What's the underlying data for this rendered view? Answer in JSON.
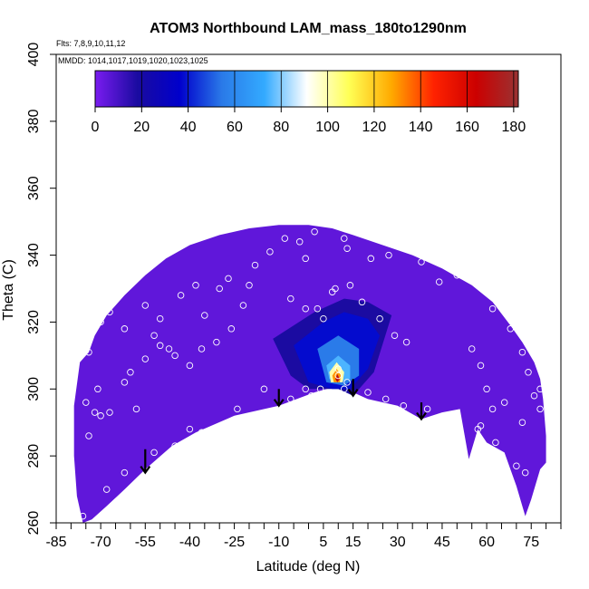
{
  "chart_data": {
    "type": "heatmap",
    "title": "ATOM3 Northbound LAM_mass_180to1290nm",
    "flights_label": "Flts: 7,8,9,10,11,12",
    "dates_label": "MMDD: 1014,1017,1019,1020,1023,1025",
    "xlabel": "Latitude (deg N)",
    "ylabel": "Theta (C)",
    "xlim": [
      -85,
      85
    ],
    "ylim": [
      260,
      400
    ],
    "x_tick_labels": [
      "-85",
      "-70",
      "-55",
      "-40",
      "-25",
      "-10",
      "5",
      "15",
      "30",
      "45",
      "60",
      "75"
    ],
    "x_minor_ticks": [
      -85,
      -80,
      -75,
      -70,
      -65,
      -60,
      -55,
      -50,
      -45,
      -40,
      -35,
      -30,
      -25,
      -20,
      -15,
      -10,
      -5,
      0,
      5,
      10,
      15,
      20,
      25,
      30,
      35,
      40,
      45,
      50,
      55,
      60,
      65,
      70,
      75,
      80,
      85
    ],
    "y_ticks": [
      260,
      280,
      300,
      320,
      340,
      360,
      380,
      400
    ],
    "colorbar": {
      "ticks": [
        0,
        20,
        40,
        60,
        80,
        100,
        120,
        140,
        160,
        180
      ],
      "range": [
        0,
        182
      ],
      "colors": [
        "#7a1cf0",
        "#1a0ba0",
        "#0000cc",
        "#2a7ae8",
        "#33aaff",
        "#ffffff",
        "#ffff55",
        "#ffaa00",
        "#ff2200",
        "#cc0000",
        "#993333"
      ]
    },
    "boundary": {
      "upper": [
        [
          -74,
          311
        ],
        [
          -72,
          316
        ],
        [
          -68,
          322
        ],
        [
          -62,
          328
        ],
        [
          -55,
          334
        ],
        [
          -48,
          339
        ],
        [
          -40,
          343
        ],
        [
          -30,
          346
        ],
        [
          -20,
          348
        ],
        [
          -10,
          349
        ],
        [
          0,
          349
        ],
        [
          8,
          348
        ],
        [
          15,
          346
        ],
        [
          25,
          343
        ],
        [
          35,
          340
        ],
        [
          45,
          336
        ],
        [
          55,
          331
        ],
        [
          62,
          326
        ],
        [
          68,
          319
        ],
        [
          72,
          314
        ],
        [
          76,
          308
        ],
        [
          78,
          303
        ]
      ],
      "right": [
        [
          78,
          303
        ],
        [
          79,
          297
        ],
        [
          80,
          286
        ],
        [
          80,
          278
        ]
      ],
      "lower": [
        [
          80,
          278
        ],
        [
          78,
          276
        ],
        [
          75,
          267
        ],
        [
          73,
          262
        ],
        [
          70,
          271
        ],
        [
          66,
          281
        ],
        [
          60,
          284
        ],
        [
          57,
          288
        ],
        [
          54,
          279
        ],
        [
          51,
          294
        ],
        [
          45,
          293
        ],
        [
          38,
          291
        ],
        [
          30,
          295
        ],
        [
          20,
          297
        ],
        [
          15,
          299
        ],
        [
          10,
          301
        ],
        [
          2,
          299
        ],
        [
          -10,
          295
        ],
        [
          -25,
          292
        ],
        [
          -38,
          287
        ],
        [
          -46,
          283
        ],
        [
          -55,
          276
        ],
        [
          -62,
          270
        ],
        [
          -68,
          265
        ],
        [
          -73,
          261
        ],
        [
          -76,
          260
        ],
        [
          -78,
          268
        ],
        [
          -79,
          280
        ],
        [
          -79,
          295
        ],
        [
          -77,
          308
        ]
      ]
    },
    "features": {
      "background_value": 5,
      "regions": [
        {
          "value": 18,
          "polygon": [
            [
              -12,
              315
            ],
            [
              2,
              323
            ],
            [
              12,
              327
            ],
            [
              20,
              326
            ],
            [
              28,
              322
            ],
            [
              22,
              305
            ],
            [
              15,
              298
            ],
            [
              10,
              300
            ],
            [
              0,
              300
            ],
            [
              -6,
              304
            ]
          ]
        },
        {
          "value": 38,
          "polygon": [
            [
              -5,
              313
            ],
            [
              5,
              320
            ],
            [
              12,
              323
            ],
            [
              20,
              321
            ],
            [
              24,
              316
            ],
            [
              20,
              306
            ],
            [
              14,
              300
            ],
            [
              8,
              300
            ],
            [
              0,
              302
            ]
          ]
        },
        {
          "value": 55,
          "polygon": [
            [
              3,
              312
            ],
            [
              10,
              316
            ],
            [
              17,
              312
            ],
            [
              17,
              304
            ],
            [
              12,
              301
            ],
            [
              6,
              302
            ]
          ]
        },
        {
          "value": 75,
          "polygon": [
            [
              6,
              307
            ],
            [
              10,
              310
            ],
            [
              14,
              307
            ],
            [
              14,
              303
            ],
            [
              10,
              302
            ],
            [
              7,
              303
            ]
          ]
        },
        {
          "value": 100,
          "polygon": [
            [
              7,
              305
            ],
            [
              9.5,
              308
            ],
            [
              12,
              305
            ],
            [
              11.5,
              302
            ],
            [
              7.5,
              302
            ]
          ]
        },
        {
          "value": 130,
          "polygon": [
            [
              8,
              304
            ],
            [
              9.5,
              306
            ],
            [
              11,
              304
            ],
            [
              10.5,
              302
            ],
            [
              8.5,
              302
            ]
          ]
        },
        {
          "value": 170,
          "polygon": [
            [
              9,
              303
            ],
            [
              9.7,
              304.5
            ],
            [
              10.5,
              303
            ],
            [
              9.7,
              302
            ]
          ]
        }
      ]
    },
    "observations": [
      [
        -74,
        311
      ],
      [
        -70,
        320
      ],
      [
        -67,
        323
      ],
      [
        -62,
        318
      ],
      [
        -55,
        325
      ],
      [
        -50,
        321
      ],
      [
        -52,
        316
      ],
      [
        -47,
        312
      ],
      [
        -43,
        328
      ],
      [
        -38,
        331
      ],
      [
        -35,
        322
      ],
      [
        -30,
        330
      ],
      [
        -27,
        333
      ],
      [
        -22,
        325
      ],
      [
        -20,
        331
      ],
      [
        -18,
        337
      ],
      [
        -13,
        341
      ],
      [
        -8,
        345
      ],
      [
        -3,
        344
      ],
      [
        -1,
        339
      ],
      [
        2,
        347
      ],
      [
        12,
        345
      ],
      [
        13,
        342
      ],
      [
        21,
        339
      ],
      [
        27,
        340
      ],
      [
        38,
        338
      ],
      [
        44,
        332
      ],
      [
        50,
        334
      ],
      [
        55,
        333
      ],
      [
        62,
        324
      ],
      [
        68,
        318
      ],
      [
        72,
        311
      ],
      [
        -60,
        305
      ],
      [
        -55,
        309
      ],
      [
        -50,
        313
      ],
      [
        -45,
        310
      ],
      [
        -40,
        307
      ],
      [
        -36,
        312
      ],
      [
        -31,
        314
      ],
      [
        -26,
        318
      ],
      [
        -71,
        300
      ],
      [
        -75,
        296
      ],
      [
        -62,
        302
      ],
      [
        -67,
        293
      ],
      [
        -70,
        292
      ],
      [
        -72,
        293
      ],
      [
        -58,
        294
      ],
      [
        -74,
        286
      ],
      [
        -40,
        288
      ],
      [
        -36,
        287
      ],
      [
        -24,
        294
      ],
      [
        -15,
        300
      ],
      [
        -6,
        297
      ],
      [
        -1,
        300
      ],
      [
        1,
        298
      ],
      [
        4,
        300
      ],
      [
        8,
        329
      ],
      [
        9,
        330
      ],
      [
        3,
        324
      ],
      [
        5,
        321
      ],
      [
        -1,
        324
      ],
      [
        -6,
        327
      ],
      [
        14,
        331
      ],
      [
        18,
        326
      ],
      [
        24,
        321
      ],
      [
        29,
        316
      ],
      [
        33,
        314
      ],
      [
        10,
        306
      ],
      [
        10,
        304
      ],
      [
        13,
        302
      ],
      [
        12,
        300
      ],
      [
        20,
        299
      ],
      [
        26,
        297
      ],
      [
        32,
        295
      ],
      [
        40,
        294
      ],
      [
        57,
        288
      ],
      [
        63,
        284
      ],
      [
        66,
        296
      ],
      [
        72,
        290
      ],
      [
        76,
        298
      ],
      [
        78,
        294
      ],
      [
        58,
        307
      ],
      [
        55,
        312
      ],
      [
        60,
        300
      ],
      [
        62,
        294
      ],
      [
        74,
        305
      ],
      [
        78,
        300
      ],
      [
        58,
        289
      ],
      [
        70,
        277
      ],
      [
        73,
        275
      ],
      [
        -76,
        262
      ],
      [
        -68,
        270
      ],
      [
        -62,
        275
      ],
      [
        -45,
        283
      ],
      [
        -52,
        281
      ],
      [
        -65,
        266
      ],
      [
        -69,
        262
      ]
    ],
    "arrows": [
      {
        "lat": -55,
        "from": 282,
        "to": 275
      },
      {
        "lat": -10,
        "from": 300,
        "to": 295
      },
      {
        "lat": 15,
        "from": 303,
        "to": 298
      },
      {
        "lat": 38,
        "from": 296,
        "to": 291
      }
    ]
  }
}
